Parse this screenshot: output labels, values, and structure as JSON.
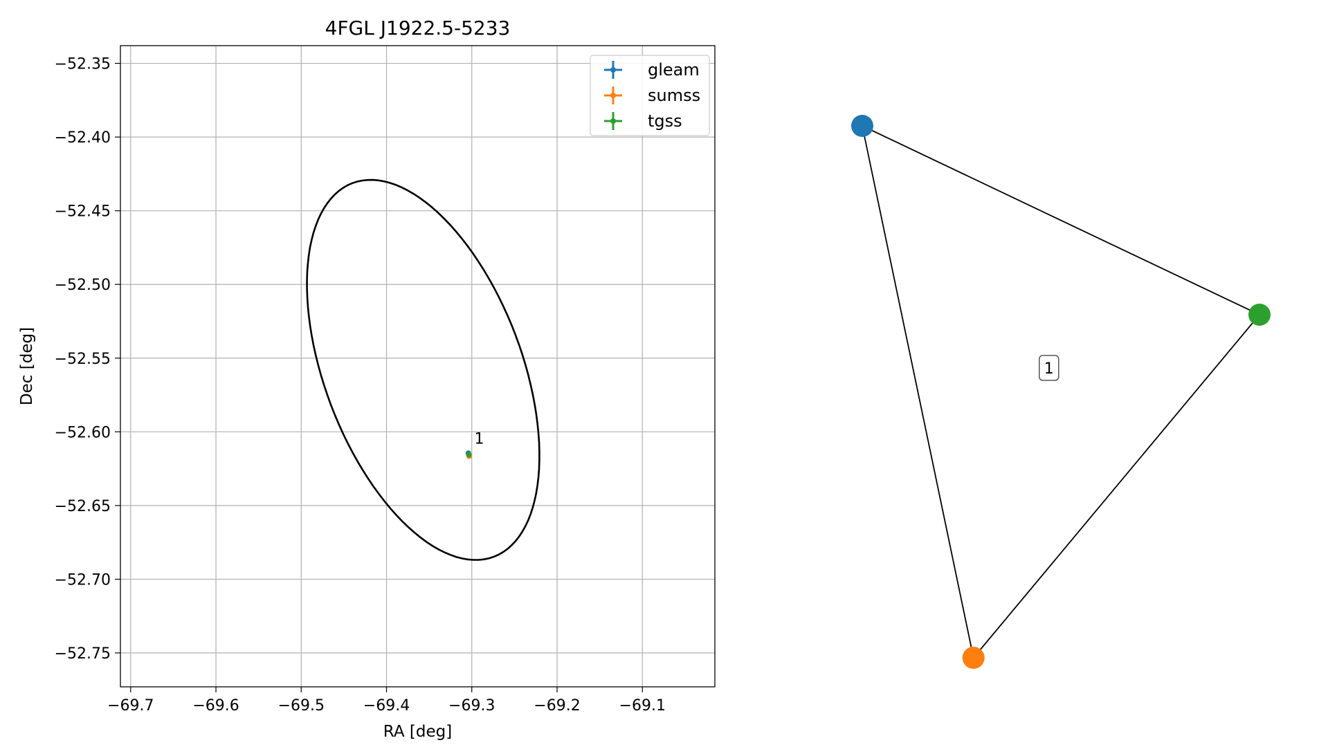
{
  "chart_data": [
    {
      "type": "scatter",
      "title": "4FGL J1922.5-5233",
      "xlabel": "RA [deg]",
      "ylabel": "Dec [deg]",
      "xlim": [
        -69.712,
        -69.015
      ],
      "ylim": [
        -52.773,
        -52.338
      ],
      "xticks": [
        -69.7,
        -69.6,
        -69.5,
        -69.4,
        -69.3,
        -69.2,
        -69.1
      ],
      "xtick_labels": [
        "−69.7",
        "−69.6",
        "−69.5",
        "−69.4",
        "−69.3",
        "−69.2",
        "−69.1"
      ],
      "yticks": [
        -52.35,
        -52.4,
        -52.45,
        -52.5,
        -52.55,
        -52.6,
        -52.65,
        -52.7,
        -52.75
      ],
      "ytick_labels": [
        "−52.35",
        "−52.40",
        "−52.45",
        "−52.50",
        "−52.55",
        "−52.60",
        "−52.65",
        "−52.70",
        "−52.75"
      ],
      "grid": true,
      "legend_position": "top-right",
      "series": [
        {
          "name": "gleam",
          "color": "#1f77b4",
          "points": [
            {
              "x": -69.304,
              "y": -52.6145
            }
          ]
        },
        {
          "name": "sumss",
          "color": "#ff7f0e",
          "points": [
            {
              "x": -69.303,
              "y": -52.6165
            }
          ]
        },
        {
          "name": "tgss",
          "color": "#2ca02c",
          "points": [
            {
              "x": -69.3035,
              "y": -52.6155
            }
          ]
        }
      ],
      "annotations": [
        {
          "text": "1",
          "x": -69.297,
          "y": -52.608
        }
      ],
      "error_ellipse": {
        "center": [
          -69.357,
          -52.558
        ],
        "semi_major": 0.16,
        "semi_minor": 0.098,
        "angle_deg": -41.5,
        "color": "#000000"
      }
    },
    {
      "type": "network",
      "nodes": [
        {
          "name": "gleam",
          "color": "#1f77b4",
          "pos": [
            0.0,
            1.0
          ]
        },
        {
          "name": "sumss",
          "color": "#ff7f0e",
          "pos": [
            0.28,
            0.0
          ]
        },
        {
          "name": "tgss",
          "color": "#2ca02c",
          "pos": [
            1.0,
            0.645
          ]
        }
      ],
      "edges": [
        [
          "gleam",
          "tgss"
        ],
        [
          "gleam",
          "sumss"
        ],
        [
          "sumss",
          "tgss"
        ]
      ],
      "cluster_label": {
        "text": "1",
        "pos": [
          0.47,
          0.545
        ]
      }
    }
  ]
}
